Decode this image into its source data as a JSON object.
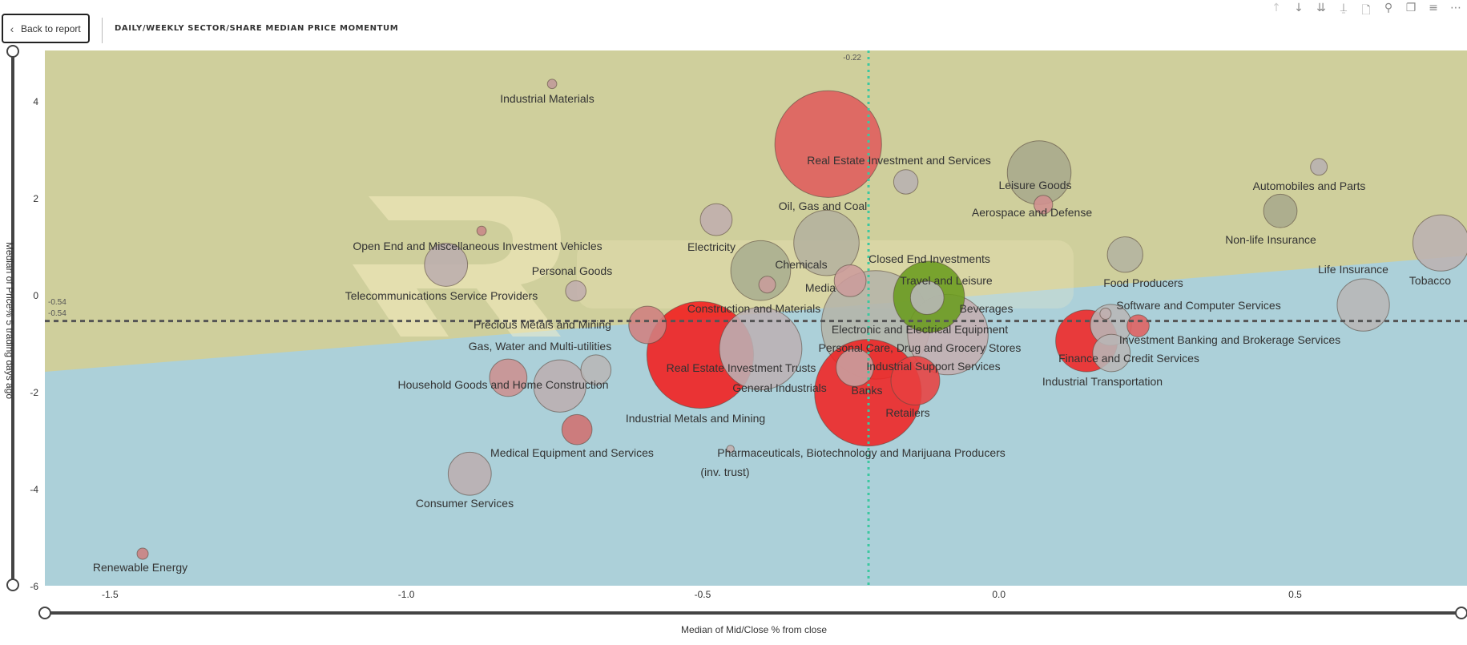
{
  "header": {
    "back_label": "Back to report",
    "back_icon": "chevron-left-icon",
    "title": "DAILY/WEEKLY SECTOR/SHARE MEDIAN PRICE MOMENTUM"
  },
  "toolbar": [
    {
      "icon": "drill-up-icon",
      "glyph": "↑"
    },
    {
      "icon": "drill-down-icon",
      "glyph": "↓"
    },
    {
      "icon": "go-to-next-level-icon",
      "glyph": "⇊"
    },
    {
      "icon": "expand-hierarchy-icon",
      "glyph": "⍊"
    },
    {
      "icon": "export-icon",
      "glyph": "🗋"
    },
    {
      "icon": "pin-icon",
      "glyph": "⚲"
    },
    {
      "icon": "copy-visual-icon",
      "glyph": "❐"
    },
    {
      "icon": "filter-icon",
      "glyph": "≡"
    },
    {
      "icon": "more-options-icon",
      "glyph": "⋯"
    }
  ],
  "watermark": "RunProfits",
  "colors": {
    "upper_region": "#cfcf9c",
    "lower_region": "#acd0d9",
    "hline": "#555555",
    "vline": "#3cc8a0"
  },
  "chart_data": {
    "type": "scatter",
    "subtype": "bubble",
    "title": "DAILY/WEEKLY SECTOR/SHARE MEDIAN PRICE MOMENTUM",
    "xlabel": "Median of Mid/Close % from close",
    "ylabel": "Median of Price% 5 trading days ago",
    "xlim": [
      -1.61,
      0.79
    ],
    "ylim": [
      -6,
      5.04
    ],
    "xticks": [
      {
        "v": -1.5,
        "label": "-1.5"
      },
      {
        "v": -1.0,
        "label": "-1.0"
      },
      {
        "v": -0.5,
        "label": "-0.5"
      },
      {
        "v": 0.0,
        "label": "0.0"
      },
      {
        "v": 0.5,
        "label": "0.5"
      }
    ],
    "yticks": [
      {
        "v": 4,
        "label": "4"
      },
      {
        "v": 2,
        "label": "2"
      },
      {
        "v": 0,
        "label": "0"
      },
      {
        "v": -2,
        "label": "-2"
      },
      {
        "v": -4,
        "label": "-4"
      },
      {
        "v": -6,
        "label": "-6"
      }
    ],
    "reference_lines": {
      "horizontal": {
        "value": -0.54,
        "labels": [
          "-0.54",
          "-0.54"
        ]
      },
      "vertical": {
        "value": -0.22,
        "label": "-0.22"
      }
    },
    "grid": false,
    "points": [
      {
        "name": "Industrial Materials",
        "x": -0.754,
        "y": 4.35,
        "size": 2.5,
        "color": "#c09a9a"
      },
      {
        "name": "Real Estate Investment and Services",
        "x": -0.288,
        "y": 3.11,
        "size": 325,
        "color": "#e05c5c"
      },
      {
        "name": "",
        "x": -0.157,
        "y": 2.33,
        "size": 17,
        "color": "#b8b2b2"
      },
      {
        "name": "Leisure Goods",
        "x": 0.068,
        "y": 2.52,
        "size": 116,
        "color": "#a8aa8c"
      },
      {
        "name": "Aerospace and Defense",
        "x": 0.075,
        "y": 1.86,
        "size": 10,
        "color": "#d09090"
      },
      {
        "name": "Automobiles and Parts",
        "x": 0.54,
        "y": 2.64,
        "size": 8,
        "color": "#b8b2b2"
      },
      {
        "name": "Non-life Insurance",
        "x": 0.475,
        "y": 1.73,
        "size": 32,
        "color": "#a8aa8c"
      },
      {
        "name": "Tobacco",
        "x": 0.746,
        "y": 1.07,
        "size": 90,
        "color": "#bcb2b2"
      },
      {
        "name": "Life Insurance",
        "x": 0.615,
        "y": -0.21,
        "size": 78,
        "color": "#b8b6b6"
      },
      {
        "name": "Oil, Gas and Coal",
        "x": -0.291,
        "y": 1.07,
        "size": 122,
        "color": "#b4b29e"
      },
      {
        "name": "Electricity",
        "x": -0.477,
        "y": 1.55,
        "size": 29,
        "color": "#c0aeae"
      },
      {
        "name": "Chemicals",
        "x": -0.402,
        "y": 0.5,
        "size": 102,
        "color": "#a8ae90"
      },
      {
        "name": "",
        "x": -0.391,
        "y": 0.21,
        "size": 8,
        "color": "#c89c9c"
      },
      {
        "name": "Media",
        "x": -0.251,
        "y": 0.29,
        "size": 29,
        "color": "#cc9c9c"
      },
      {
        "name": "Open End and Miscellaneous Investment Vehicles",
        "x": -0.873,
        "y": 1.32,
        "size": 2.5,
        "color": "#c88888"
      },
      {
        "name": "Telecommunications Service Providers",
        "x": -0.933,
        "y": 0.62,
        "size": 53,
        "color": "#bcaeae"
      },
      {
        "name": "Personal Goods",
        "x": -0.714,
        "y": 0.08,
        "size": 12,
        "color": "#c0aeae"
      },
      {
        "name": "Food Producers",
        "x": 0.213,
        "y": 0.83,
        "size": 36,
        "color": "#b4b4a0"
      },
      {
        "name": "Electronic and Electrical Equipment",
        "x": -0.208,
        "y": -0.62,
        "size": 336,
        "color": "#b4b4a8"
      },
      {
        "name": "Travel and Leisure",
        "x": -0.118,
        "y": -0.04,
        "size": 144,
        "color": "#6a9c1e"
      },
      {
        "name": "Closed End Investments",
        "x": -0.121,
        "y": -0.06,
        "size": 32,
        "color": "#b8b8b8"
      },
      {
        "name": "Beverages",
        "x": -0.086,
        "y": -0.82,
        "size": 185,
        "color": "#c4aeb0"
      },
      {
        "name": "Software and Computer Services",
        "x": 0.18,
        "y": -0.39,
        "size": 3.6,
        "color": "#c0aeae"
      },
      {
        "name": "",
        "x": 0.189,
        "y": -0.62,
        "size": 48,
        "color": "#b8b6b6"
      },
      {
        "name": "Finance and Credit Services",
        "x": 0.148,
        "y": -0.95,
        "size": 109,
        "color": "#f02424"
      },
      {
        "name": "Investment Banking and Brokerage Services",
        "x": 0.235,
        "y": -0.64,
        "size": 14,
        "color": "#e06060"
      },
      {
        "name": "Industrial Transportation",
        "x": 0.19,
        "y": -1.2,
        "size": 40,
        "color": "#b8b6b6"
      },
      {
        "name": "Precious Metals and Mining",
        "x": -0.593,
        "y": -0.62,
        "size": 40,
        "color": "#d08080"
      },
      {
        "name": "Real Estate Investment Trusts",
        "x": -0.504,
        "y": -1.24,
        "size": 325,
        "color": "#f21c1c"
      },
      {
        "name": "General Industrials",
        "x": -0.402,
        "y": -1.11,
        "size": 194,
        "color": "#bcb0b4"
      },
      {
        "name": "Gas, Water and Multi-utilities",
        "x": -0.828,
        "y": -1.71,
        "size": 40,
        "color": "#cc9090"
      },
      {
        "name": "",
        "x": -0.68,
        "y": -1.55,
        "size": 26,
        "color": "#b8b6b6"
      },
      {
        "name": "Household Goods and Home Construction",
        "x": -0.741,
        "y": -1.88,
        "size": 78,
        "color": "#bcaeb0"
      },
      {
        "name": "Banks",
        "x": -0.221,
        "y": -2.02,
        "size": 325,
        "color": "#f02222"
      },
      {
        "name": "Retailers",
        "x": -0.141,
        "y": -1.77,
        "size": 68,
        "color": "#e84040"
      },
      {
        "name": "Industrial Support Services",
        "x": -0.243,
        "y": -1.5,
        "size": 40,
        "color": "#c8a0a0"
      },
      {
        "name": "Industrial Metals and Mining",
        "x": -0.712,
        "y": -2.78,
        "size": 26,
        "color": "#d07070"
      },
      {
        "name": "Pharmaceuticals, Biotechnology and Marijuana Producers (inv. trust)",
        "x": -0.453,
        "y": -3.18,
        "size": 1.6,
        "color": "#c0aeae"
      },
      {
        "name": "Medical Equipment and Services",
        "x": -0.893,
        "y": -3.69,
        "size": 53,
        "color": "#bcaeb0"
      },
      {
        "name": "Consumer Services",
        "x": -0.893,
        "y": -3.69,
        "size": 0,
        "color": "#bcaeb0"
      },
      {
        "name": "Renewable Energy",
        "x": -1.445,
        "y": -5.34,
        "size": 3.6,
        "color": "#cc8080"
      }
    ],
    "labels": [
      "Industrial Materials",
      "Real Estate Investment and Services",
      "Leisure Goods",
      "Aerospace and Defense",
      "Automobiles and Parts",
      "Non-life Insurance",
      "Tobacco",
      "Life Insurance",
      "Oil, Gas and Coal",
      "Electricity",
      "Chemicals",
      "Media",
      "Closed End Investments",
      "Travel and Leisure",
      "Beverages",
      "Open End and Miscellaneous Investment Vehicles",
      "Personal Goods",
      "Telecommunications Service Providers",
      "Food Producers",
      "Software and Computer Services",
      "Construction and Materials",
      "Precious Metals and Mining",
      "Electronic and Electrical Equipment",
      "Investment Banking and Brokerage Services",
      "Gas, Water and Multi-utilities",
      "Personal Care, Drug and Grocery Stores",
      "Finance and Credit Services",
      "Real Estate Investment Trusts",
      "Industrial Support Services",
      "General Industrials",
      "Household Goods and Home Construction",
      "Banks",
      "Industrial Transportation",
      "Retailers",
      "Industrial Metals and Mining",
      "Pharmaceuticals, Biotechnology and Marijuana Producers",
      "(inv. trust)",
      "Medical Equipment and Services",
      "Consumer Services",
      "Renewable Energy"
    ]
  }
}
